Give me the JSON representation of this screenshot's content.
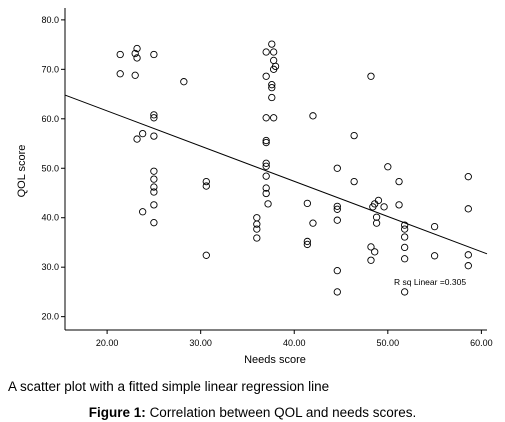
{
  "chart_data": {
    "type": "scatter",
    "xlabel": "Needs score",
    "ylabel": "QOL score",
    "xlim": [
      15.5,
      60.6
    ],
    "ylim": [
      17.3,
      82.4
    ],
    "xticks": [
      20,
      30,
      40,
      50,
      60
    ],
    "yticks": [
      20,
      30,
      40,
      50,
      60,
      70,
      80
    ],
    "xtick_labels": [
      "20.00",
      "30.00",
      "40.00",
      "50.00",
      "60.00"
    ],
    "ytick_labels": [
      "20.0",
      "30.0",
      "40.0",
      "50.0",
      "60.0",
      "70.0",
      "80.0"
    ],
    "grid": false,
    "points": [
      [
        21.4,
        73.0
      ],
      [
        21.4,
        69.1
      ],
      [
        23.0,
        73.2
      ],
      [
        23.2,
        74.2
      ],
      [
        23.2,
        72.3
      ],
      [
        23.0,
        68.8
      ],
      [
        23.8,
        57.0
      ],
      [
        23.2,
        55.9
      ],
      [
        23.8,
        41.2
      ],
      [
        25.0,
        73.0
      ],
      [
        25.0,
        60.8
      ],
      [
        25.0,
        60.2
      ],
      [
        25.0,
        56.5
      ],
      [
        25.0,
        49.4
      ],
      [
        25.0,
        47.8
      ],
      [
        25.0,
        46.2
      ],
      [
        25.0,
        45.2
      ],
      [
        25.0,
        42.6
      ],
      [
        25.0,
        39.0
      ],
      [
        28.2,
        67.5
      ],
      [
        30.6,
        47.3
      ],
      [
        30.6,
        46.4
      ],
      [
        30.6,
        32.4
      ],
      [
        36.0,
        40.0
      ],
      [
        36.0,
        38.7
      ],
      [
        36.0,
        37.7
      ],
      [
        36.0,
        35.9
      ],
      [
        37.0,
        73.5
      ],
      [
        37.6,
        75.1
      ],
      [
        37.8,
        73.5
      ],
      [
        37.8,
        71.8
      ],
      [
        38.0,
        70.6
      ],
      [
        37.8,
        70.0
      ],
      [
        37.0,
        68.6
      ],
      [
        37.6,
        66.9
      ],
      [
        37.6,
        66.3
      ],
      [
        37.6,
        64.3
      ],
      [
        37.0,
        60.2
      ],
      [
        37.8,
        60.2
      ],
      [
        37.0,
        55.6
      ],
      [
        37.0,
        55.2
      ],
      [
        37.0,
        51.0
      ],
      [
        37.0,
        50.4
      ],
      [
        37.0,
        48.4
      ],
      [
        37.0,
        46.0
      ],
      [
        37.0,
        44.9
      ],
      [
        37.2,
        42.8
      ],
      [
        42.0,
        60.6
      ],
      [
        41.4,
        42.9
      ],
      [
        42.0,
        38.9
      ],
      [
        41.4,
        35.2
      ],
      [
        41.4,
        34.6
      ],
      [
        44.6,
        50.0
      ],
      [
        44.6,
        42.3
      ],
      [
        44.6,
        41.7
      ],
      [
        44.6,
        39.5
      ],
      [
        44.6,
        29.3
      ],
      [
        44.6,
        25.0
      ],
      [
        46.4,
        56.6
      ],
      [
        46.4,
        47.3
      ],
      [
        48.2,
        68.6
      ],
      [
        49.0,
        43.5
      ],
      [
        48.6,
        42.8
      ],
      [
        48.4,
        42.2
      ],
      [
        49.6,
        42.2
      ],
      [
        48.8,
        40.1
      ],
      [
        48.8,
        38.9
      ],
      [
        48.2,
        34.1
      ],
      [
        48.2,
        31.4
      ],
      [
        48.6,
        33.1
      ],
      [
        50.0,
        50.3
      ],
      [
        51.2,
        47.3
      ],
      [
        51.2,
        42.6
      ],
      [
        51.8,
        38.5
      ],
      [
        51.8,
        37.7
      ],
      [
        51.8,
        36.1
      ],
      [
        51.8,
        34.0
      ],
      [
        51.8,
        31.7
      ],
      [
        51.8,
        25.0
      ],
      [
        55.0,
        38.2
      ],
      [
        55.0,
        32.3
      ],
      [
        58.6,
        48.3
      ],
      [
        58.6,
        41.8
      ],
      [
        58.6,
        32.5
      ],
      [
        58.6,
        30.3
      ]
    ],
    "fit_line": {
      "x0": 15.5,
      "y0": 64.8,
      "x1": 60.6,
      "y1": 32.7
    },
    "annotation": "R sq Linear =0.305"
  },
  "caption": "A scatter plot with a fitted simple linear regression line",
  "figure": {
    "label": "Figure 1:",
    "text": "Correlation between QOL and needs scores."
  }
}
